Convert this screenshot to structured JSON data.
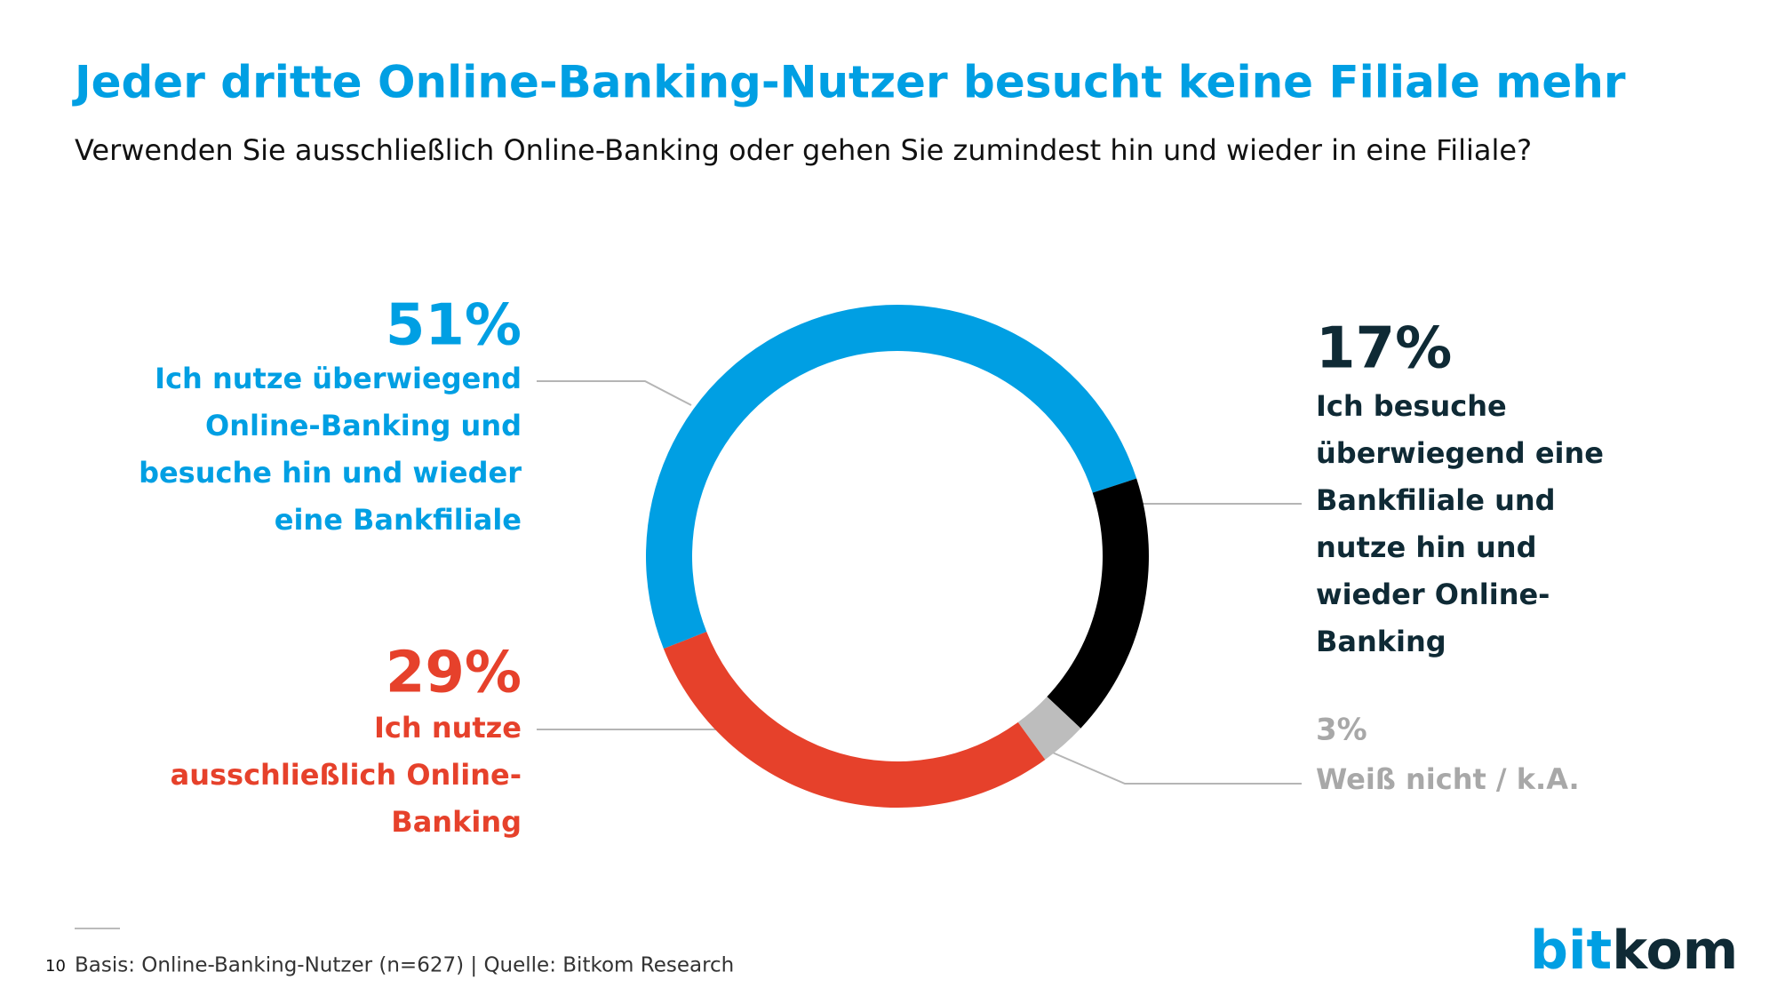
{
  "chart_data": {
    "type": "pie",
    "title": "Jeder dritte Online-Banking-Nutzer besucht keine Filiale mehr",
    "subtitle": "Verwenden Sie ausschließlich Online-Banking oder gehen Sie zumindest hin und wieder in eine Filiale?",
    "categories": [
      [
        "Ich nutze überwiegend",
        "Online-Banking und",
        "besuche hin und wieder",
        "eine Bankfiliale"
      ],
      [
        "Ich besuche",
        "überwiegend eine",
        "Bankfiliale und",
        "nutze hin und",
        "wieder Online-",
        "Banking"
      ],
      [
        "Weiß nicht / k.A."
      ],
      [
        "Ich nutze",
        "ausschließlich Online-",
        "Banking"
      ]
    ],
    "values": [
      51,
      17,
      3,
      29
    ],
    "value_labels": [
      "51%",
      "17%",
      "3%",
      "29%"
    ],
    "colors": [
      "#009fe3",
      "#000000",
      "#bdbdbd",
      "#e6412b"
    ],
    "label_colors": [
      "#009fe3",
      "#0f2a35",
      "#a8a8a8",
      "#e6412b"
    ]
  },
  "footer": {
    "page": "10",
    "source": "Basis: Online-Banking-Nutzer (n=627) | Quelle: Bitkom Research",
    "logo_1": "bit",
    "logo_2": "kom"
  }
}
